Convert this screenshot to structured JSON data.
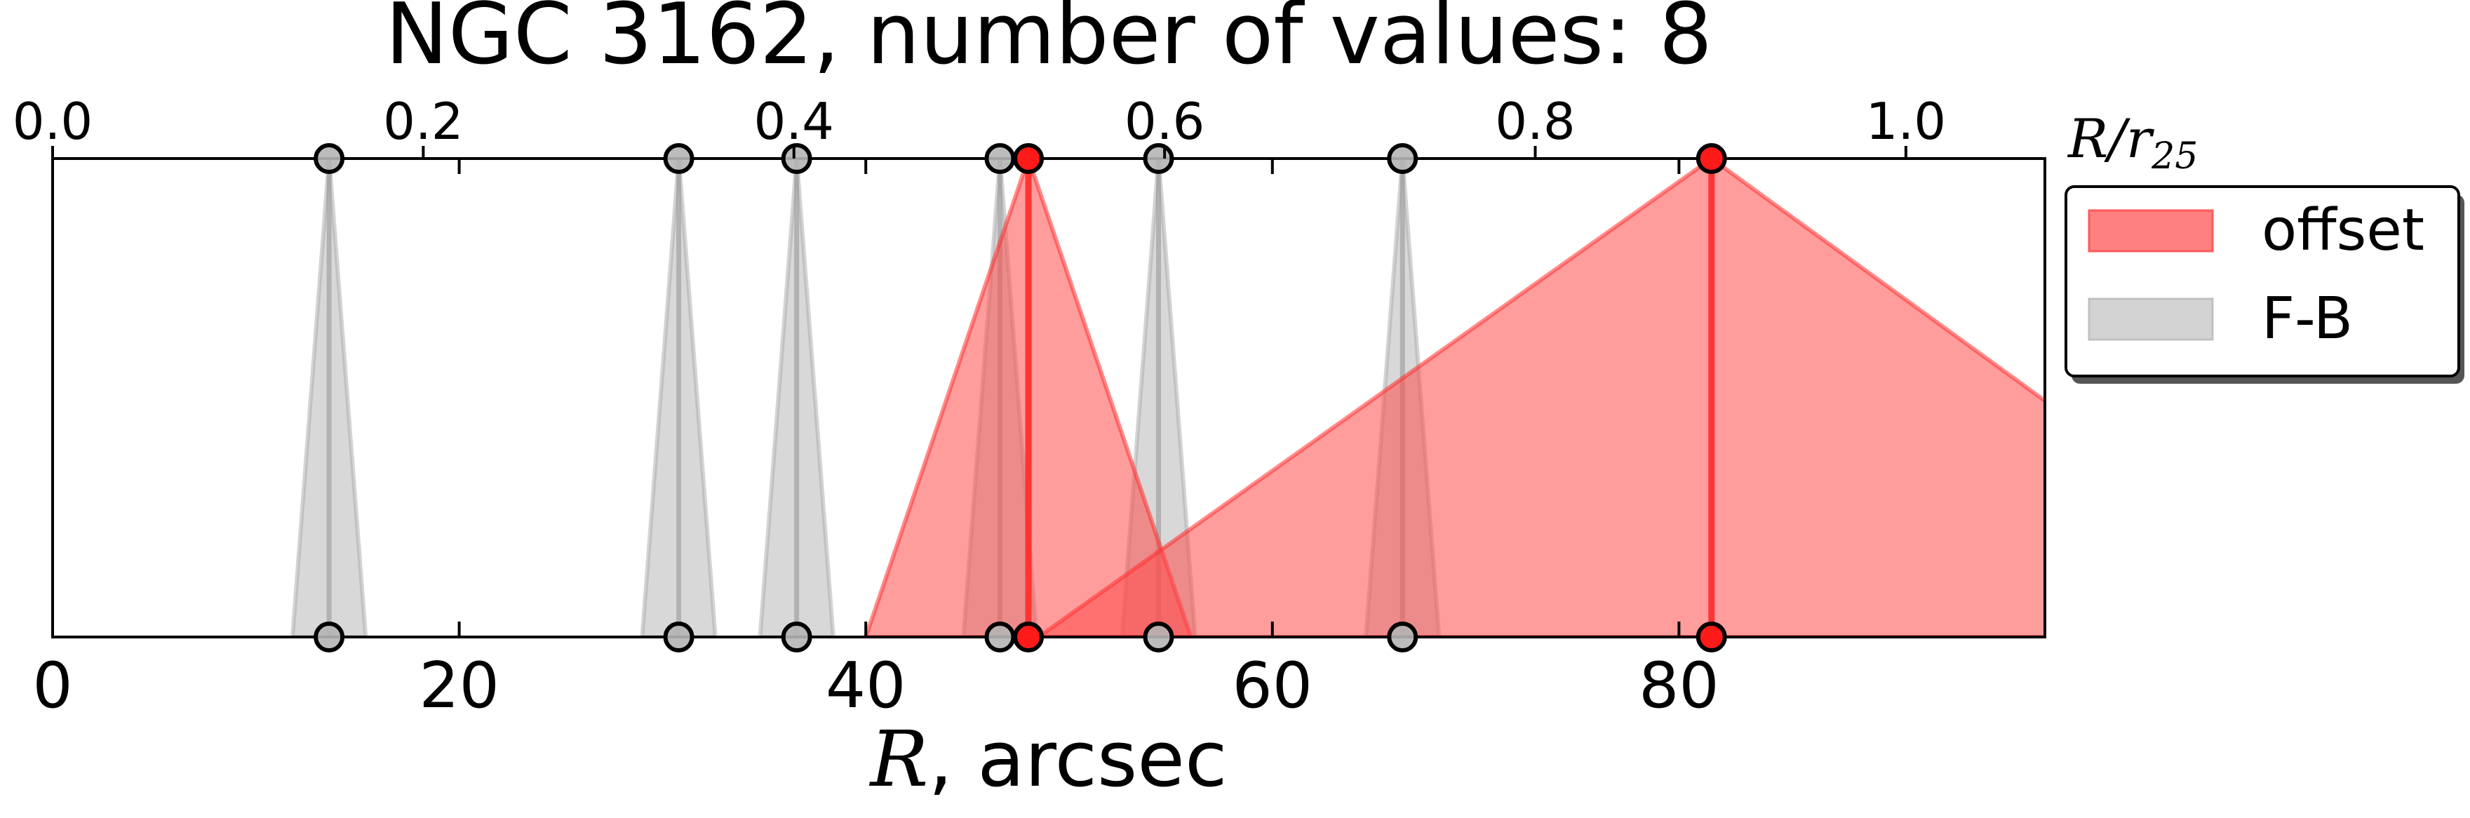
{
  "chart_data": {
    "type": "area",
    "title": "NGC 3162, number of values: 8",
    "xlabel_var": "R",
    "xlabel_rest": ", arcsec",
    "top_axis_label_var": "R/r",
    "top_axis_label_sub": "25",
    "xlim": [
      0,
      98
    ],
    "top_xlim": [
      0,
      1.075
    ],
    "x_ticks": [
      "0",
      "20",
      "40",
      "60",
      "80"
    ],
    "x_tick_values": [
      0,
      20,
      40,
      60,
      80
    ],
    "top_ticks": [
      "0.0",
      "0.2",
      "0.4",
      "0.6",
      "0.8",
      "1.0"
    ],
    "top_tick_values": [
      0.0,
      0.2,
      0.4,
      0.6,
      0.8,
      1.0
    ],
    "grid": false,
    "legend_position": "right",
    "series": [
      {
        "name": "offset",
        "color": "#ff4d4d",
        "points": [
          {
            "x": 48.0,
            "left": 40.0,
            "right": 56.0
          },
          {
            "x": 81.6,
            "left": 48.5,
            "right": 114.0
          }
        ]
      },
      {
        "name": "F-B",
        "color": "#b0b0b0",
        "points": [
          {
            "x": 13.6,
            "left": 11.8,
            "right": 15.4
          },
          {
            "x": 30.8,
            "left": 29.0,
            "right": 32.6
          },
          {
            "x": 36.6,
            "left": 34.8,
            "right": 38.4
          },
          {
            "x": 46.6,
            "left": 44.8,
            "right": 48.4
          },
          {
            "x": 54.4,
            "left": 52.6,
            "right": 56.2
          },
          {
            "x": 66.4,
            "left": 64.6,
            "right": 68.2
          }
        ]
      }
    ]
  }
}
